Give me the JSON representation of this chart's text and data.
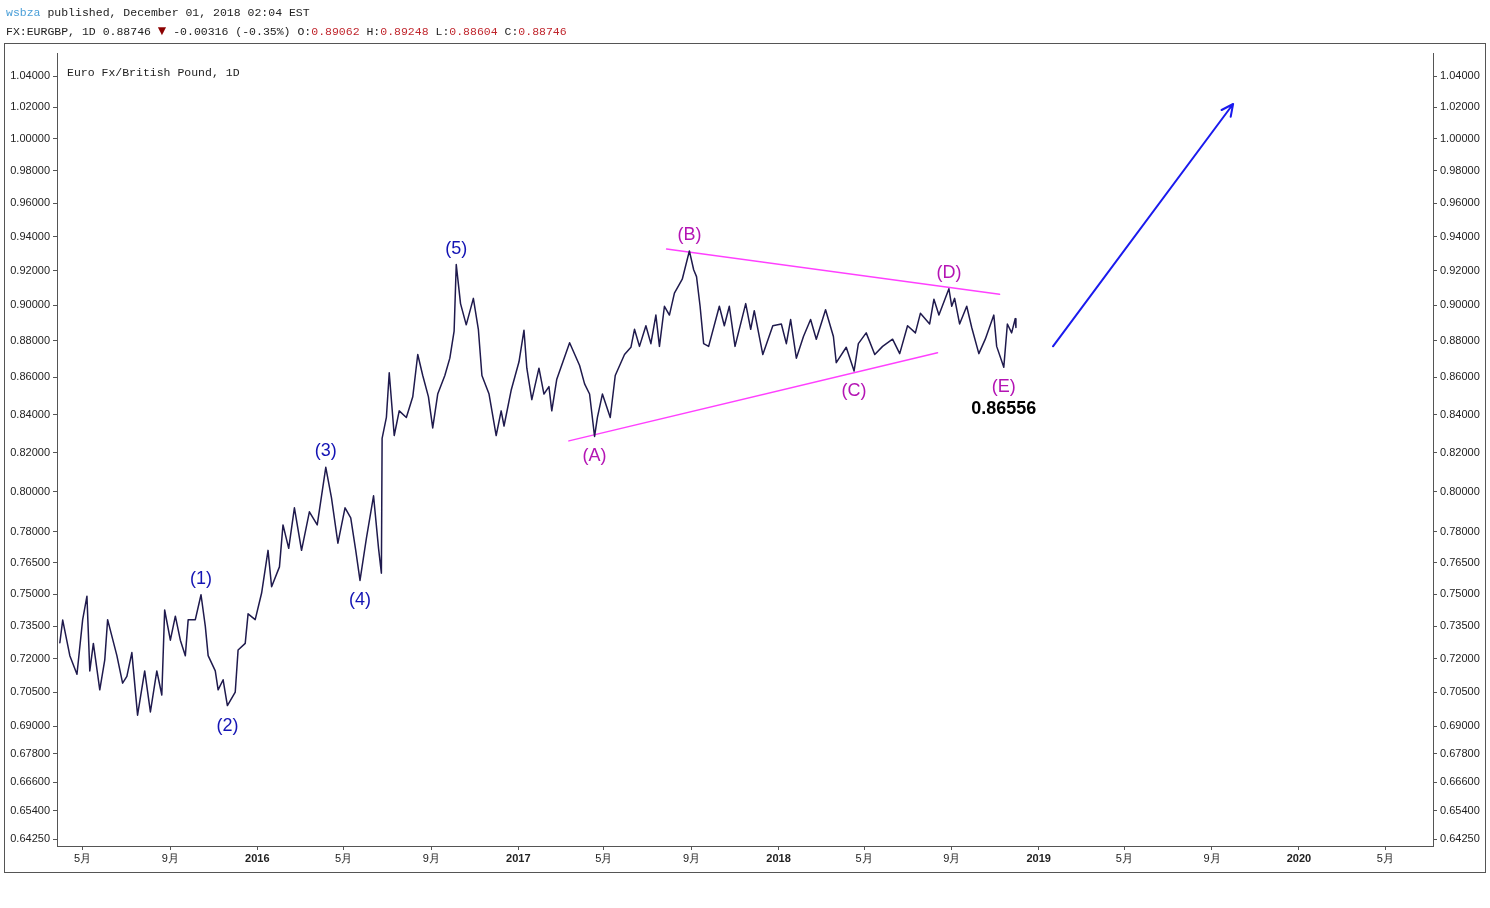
{
  "chart_data": {
    "type": "line",
    "title": "Euro Fx/British Pound, 1D",
    "subtitle": "FX:EURGBP, 1D 0.88746 ▼ -0.00316 (-0.35%) O:0.89062 H:0.89248 L:0.88604 C:0.88746",
    "annotations": [
      "wsbza published, December 01, 2018 02:04 EST",
      {
        "text": "(1)",
        "x": "2015-10-14",
        "y": 0.7497
      },
      {
        "text": "(2)",
        "x": "2015-11-20",
        "y": 0.699
      },
      {
        "text": "(3)",
        "x": "2016-04-06",
        "y": 0.8125
      },
      {
        "text": "(4)",
        "x": "2016-05-24",
        "y": 0.7565
      },
      {
        "text": "(5)",
        "x": "2016-10-06",
        "y": 0.9235
      },
      {
        "text": "(A)",
        "x": "2017-04-18",
        "y": 0.8285
      },
      {
        "text": "(B)",
        "x": "2017-08-29",
        "y": 0.9315
      },
      {
        "text": "(C)",
        "x": "2018-04-17",
        "y": 0.8635
      },
      {
        "text": "(D)",
        "x": "2018-08-28",
        "y": 0.9095
      },
      {
        "text": "(E)",
        "x": "2018-11-13",
        "y": 0.86556
      },
      "0.86556"
    ],
    "series": [
      {
        "color": "#1f1a4d",
        "x": [
          "2015-03-30",
          "2015-04-03",
          "2015-04-13",
          "2015-04-23",
          "2015-05-01",
          "2015-05-07",
          "2015-05-11",
          "2015-05-16",
          "2015-05-25",
          "2015-06-01",
          "2015-06-05",
          "2015-06-18",
          "2015-06-26",
          "2015-07-02",
          "2015-07-09",
          "2015-07-17",
          "2015-07-27",
          "2015-08-04",
          "2015-08-13",
          "2015-08-20",
          "2015-08-24",
          "2015-09-01",
          "2015-09-08",
          "2015-09-15",
          "2015-09-22",
          "2015-09-26",
          "2015-10-06",
          "2015-10-14",
          "2015-10-20",
          "2015-10-24",
          "2015-11-03",
          "2015-11-07",
          "2015-11-14",
          "2015-11-20",
          "2015-12-01",
          "2015-12-05",
          "2015-12-15",
          "2015-12-19",
          "2015-12-29",
          "2016-01-07",
          "2016-01-16",
          "2016-01-21",
          "2016-02-01",
          "2016-02-06",
          "2016-02-14",
          "2016-02-22",
          "2016-03-03",
          "2016-03-14",
          "2016-03-25",
          "2016-04-06",
          "2016-04-14",
          "2016-04-23",
          "2016-05-03",
          "2016-05-11",
          "2016-05-18",
          "2016-05-24",
          "2016-06-02",
          "2016-06-12",
          "2016-06-19",
          "2016-06-23",
          "2016-06-24",
          "2016-06-30",
          "2016-07-04",
          "2016-07-11",
          "2016-07-18",
          "2016-07-28",
          "2016-08-06",
          "2016-08-13",
          "2016-08-20",
          "2016-08-28",
          "2016-09-03",
          "2016-09-10",
          "2016-09-20",
          "2016-09-27",
          "2016-10-03",
          "2016-10-06",
          "2016-10-12",
          "2016-10-20",
          "2016-10-30",
          "2016-11-06",
          "2016-11-11",
          "2016-11-21",
          "2016-12-01",
          "2016-12-08",
          "2016-12-12",
          "2016-12-22",
          "2017-01-02",
          "2017-01-09",
          "2017-01-13",
          "2017-01-20",
          "2017-01-30",
          "2017-02-06",
          "2017-02-13",
          "2017-02-17",
          "2017-02-24",
          "2017-03-14",
          "2017-03-28",
          "2017-04-04",
          "2017-04-11",
          "2017-04-18",
          "2017-04-22",
          "2017-04-29",
          "2017-05-10",
          "2017-05-17",
          "2017-05-30",
          "2017-06-08",
          "2017-06-13",
          "2017-06-20",
          "2017-06-29",
          "2017-07-06",
          "2017-07-13",
          "2017-07-18",
          "2017-07-25",
          "2017-08-01",
          "2017-08-08",
          "2017-08-19",
          "2017-08-29",
          "2017-09-04",
          "2017-09-08",
          "2017-09-13",
          "2017-09-18",
          "2017-09-25",
          "2017-10-10",
          "2017-10-17",
          "2017-10-24",
          "2017-11-01",
          "2017-11-16",
          "2017-11-23",
          "2017-11-28",
          "2017-12-10",
          "2017-12-24",
          "2018-01-05",
          "2018-01-12",
          "2018-01-18",
          "2018-01-26",
          "2018-02-05",
          "2018-02-15",
          "2018-02-23",
          "2018-03-08",
          "2018-03-19",
          "2018-03-23",
          "2018-04-06",
          "2018-04-17",
          "2018-04-23",
          "2018-05-04",
          "2018-05-16",
          "2018-05-27",
          "2018-06-10",
          "2018-06-20",
          "2018-07-01",
          "2018-07-12",
          "2018-07-19",
          "2018-08-01",
          "2018-08-07",
          "2018-08-14",
          "2018-08-28",
          "2018-09-01",
          "2018-09-05",
          "2018-09-12",
          "2018-09-22",
          "2018-09-29",
          "2018-10-09",
          "2018-10-18",
          "2018-10-30",
          "2018-11-03",
          "2018-11-13",
          "2018-11-18",
          "2018-11-24",
          "2018-11-29",
          "2018-11-30"
        ],
        "values": [
          0.7273,
          0.7378,
          0.7214,
          0.713,
          0.738,
          0.749,
          0.7145,
          0.727,
          0.706,
          0.7195,
          0.738,
          0.7214,
          0.709,
          0.712,
          0.7228,
          0.6948,
          0.7145,
          0.6962,
          0.7145,
          0.7037,
          0.7425,
          0.7285,
          0.7396,
          0.7285,
          0.7214,
          0.738,
          0.738,
          0.7497,
          0.735,
          0.7214,
          0.7145,
          0.706,
          0.7105,
          0.699,
          0.705,
          0.724,
          0.727,
          0.7407,
          0.738,
          0.7505,
          0.771,
          0.7535,
          0.763,
          0.7835,
          0.772,
          0.792,
          0.771,
          0.79,
          0.7835,
          0.8125,
          0.797,
          0.7745,
          0.792,
          0.787,
          0.771,
          0.7565,
          0.777,
          0.798,
          0.772,
          0.76,
          0.8275,
          0.8385,
          0.8625,
          0.829,
          0.842,
          0.8385,
          0.8495,
          0.8725,
          0.861,
          0.8495,
          0.833,
          0.851,
          0.861,
          0.8705,
          0.8855,
          0.9235,
          0.901,
          0.889,
          0.904,
          0.8865,
          0.861,
          0.851,
          0.829,
          0.842,
          0.834,
          0.853,
          0.8685,
          0.886,
          0.865,
          0.848,
          0.865,
          0.851,
          0.855,
          0.842,
          0.859,
          0.879,
          0.8665,
          0.8565,
          0.851,
          0.8285,
          0.8385,
          0.851,
          0.8385,
          0.861,
          0.8725,
          0.8765,
          0.8865,
          0.877,
          0.8885,
          0.8785,
          0.8945,
          0.877,
          0.8995,
          0.8945,
          0.907,
          0.915,
          0.9315,
          0.9205,
          0.9165,
          0.8995,
          0.8785,
          0.877,
          0.8995,
          0.8885,
          0.8995,
          0.877,
          0.901,
          0.8865,
          0.897,
          0.8725,
          0.8885,
          0.8895,
          0.8785,
          0.892,
          0.8705,
          0.8825,
          0.892,
          0.881,
          0.8975,
          0.8825,
          0.868,
          0.8765,
          0.8635,
          0.8785,
          0.8845,
          0.8725,
          0.877,
          0.881,
          0.873,
          0.8885,
          0.8845,
          0.8955,
          0.8895,
          0.9035,
          0.8945,
          0.9095,
          0.8995,
          0.904,
          0.8895,
          0.8995,
          0.8875,
          0.873,
          0.881,
          0.8945,
          0.877,
          0.86556,
          0.8895,
          0.8845,
          0.8925,
          0.8875
        ]
      },
      {
        "type": "line",
        "color": "#ff40ff",
        "x": [
          "2017-07-28",
          "2018-11-07"
        ],
        "values": [
          0.9326,
          0.9063
        ]
      },
      {
        "type": "line",
        "color": "#ff40ff",
        "x": [
          "2017-03-13",
          "2018-08-12"
        ],
        "values": [
          0.8262,
          0.8735
        ]
      }
    ],
    "xlim": [
      "2015-03-26",
      "2020-07-07"
    ],
    "xticks": [
      {
        "value": "2015-05-01",
        "label": "5月"
      },
      {
        "value": "2015-09-01",
        "label": "9月"
      },
      {
        "value": "2016-01-01",
        "label": "2016"
      },
      {
        "value": "2016-05-01",
        "label": "5月"
      },
      {
        "value": "2016-09-01",
        "label": "9月"
      },
      {
        "value": "2017-01-01",
        "label": "2017"
      },
      {
        "value": "2017-05-01",
        "label": "5月"
      },
      {
        "value": "2017-09-01",
        "label": "9月"
      },
      {
        "value": "2018-01-01",
        "label": "2018"
      },
      {
        "value": "2018-05-01",
        "label": "5月"
      },
      {
        "value": "2018-09-01",
        "label": "9月"
      },
      {
        "value": "2019-01-01",
        "label": "2019"
      },
      {
        "value": "2019-05-01",
        "label": "5月"
      },
      {
        "value": "2019-09-01",
        "label": "9月"
      },
      {
        "value": "2020-01-01",
        "label": "2020"
      },
      {
        "value": "2020-05-01",
        "label": "5月"
      }
    ],
    "ylim": [
      0.6397,
      1.0551
    ],
    "yticks": [
      {
        "value": 1.04,
        "label": "1.04000"
      },
      {
        "value": 1.02,
        "label": "1.02000"
      },
      {
        "value": 1.0,
        "label": "1.00000"
      },
      {
        "value": 0.98,
        "label": "0.98000"
      },
      {
        "value": 0.96,
        "label": "0.96000"
      },
      {
        "value": 0.94,
        "label": "0.94000"
      },
      {
        "value": 0.92,
        "label": "0.92000"
      },
      {
        "value": 0.9,
        "label": "0.90000"
      },
      {
        "value": 0.88,
        "label": "0.88000"
      },
      {
        "value": 0.86,
        "label": "0.86000"
      },
      {
        "value": 0.84,
        "label": "0.84000"
      },
      {
        "value": 0.82,
        "label": "0.82000"
      },
      {
        "value": 0.8,
        "label": "0.80000"
      },
      {
        "value": 0.78,
        "label": "0.78000"
      },
      {
        "value": 0.765,
        "label": "0.76500"
      },
      {
        "value": 0.75,
        "label": "0.75000"
      },
      {
        "value": 0.735,
        "label": "0.73500"
      },
      {
        "value": 0.72,
        "label": "0.72000"
      },
      {
        "value": 0.705,
        "label": "0.70500"
      },
      {
        "value": 0.69,
        "label": "0.69000"
      },
      {
        "value": 0.678,
        "label": "0.67800"
      },
      {
        "value": 0.666,
        "label": "0.66600"
      },
      {
        "value": 0.654,
        "label": "0.65400"
      },
      {
        "value": 0.6425,
        "label": "0.64250"
      }
    ],
    "log": true,
    "legend": false,
    "marker": "none"
  }
}
